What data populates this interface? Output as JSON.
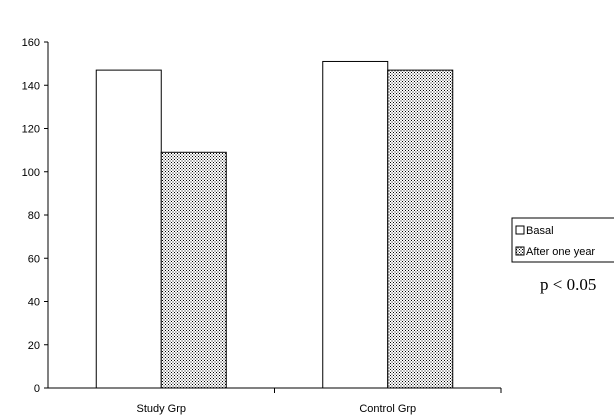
{
  "chart_data": {
    "type": "bar",
    "categories": [
      "Study Grp",
      "Control Grp"
    ],
    "series": [
      {
        "name": "Basal",
        "values": [
          147,
          151
        ],
        "fill": "#ffffff"
      },
      {
        "name": "After one year",
        "values": [
          109,
          147
        ],
        "fill": "dotted-pattern"
      }
    ],
    "ylim": [
      0,
      160
    ],
    "yticks": [
      0,
      20,
      40,
      60,
      80,
      100,
      120,
      140,
      160
    ],
    "legend_position": "right",
    "annotation": "p < 0.05",
    "grid": false
  }
}
